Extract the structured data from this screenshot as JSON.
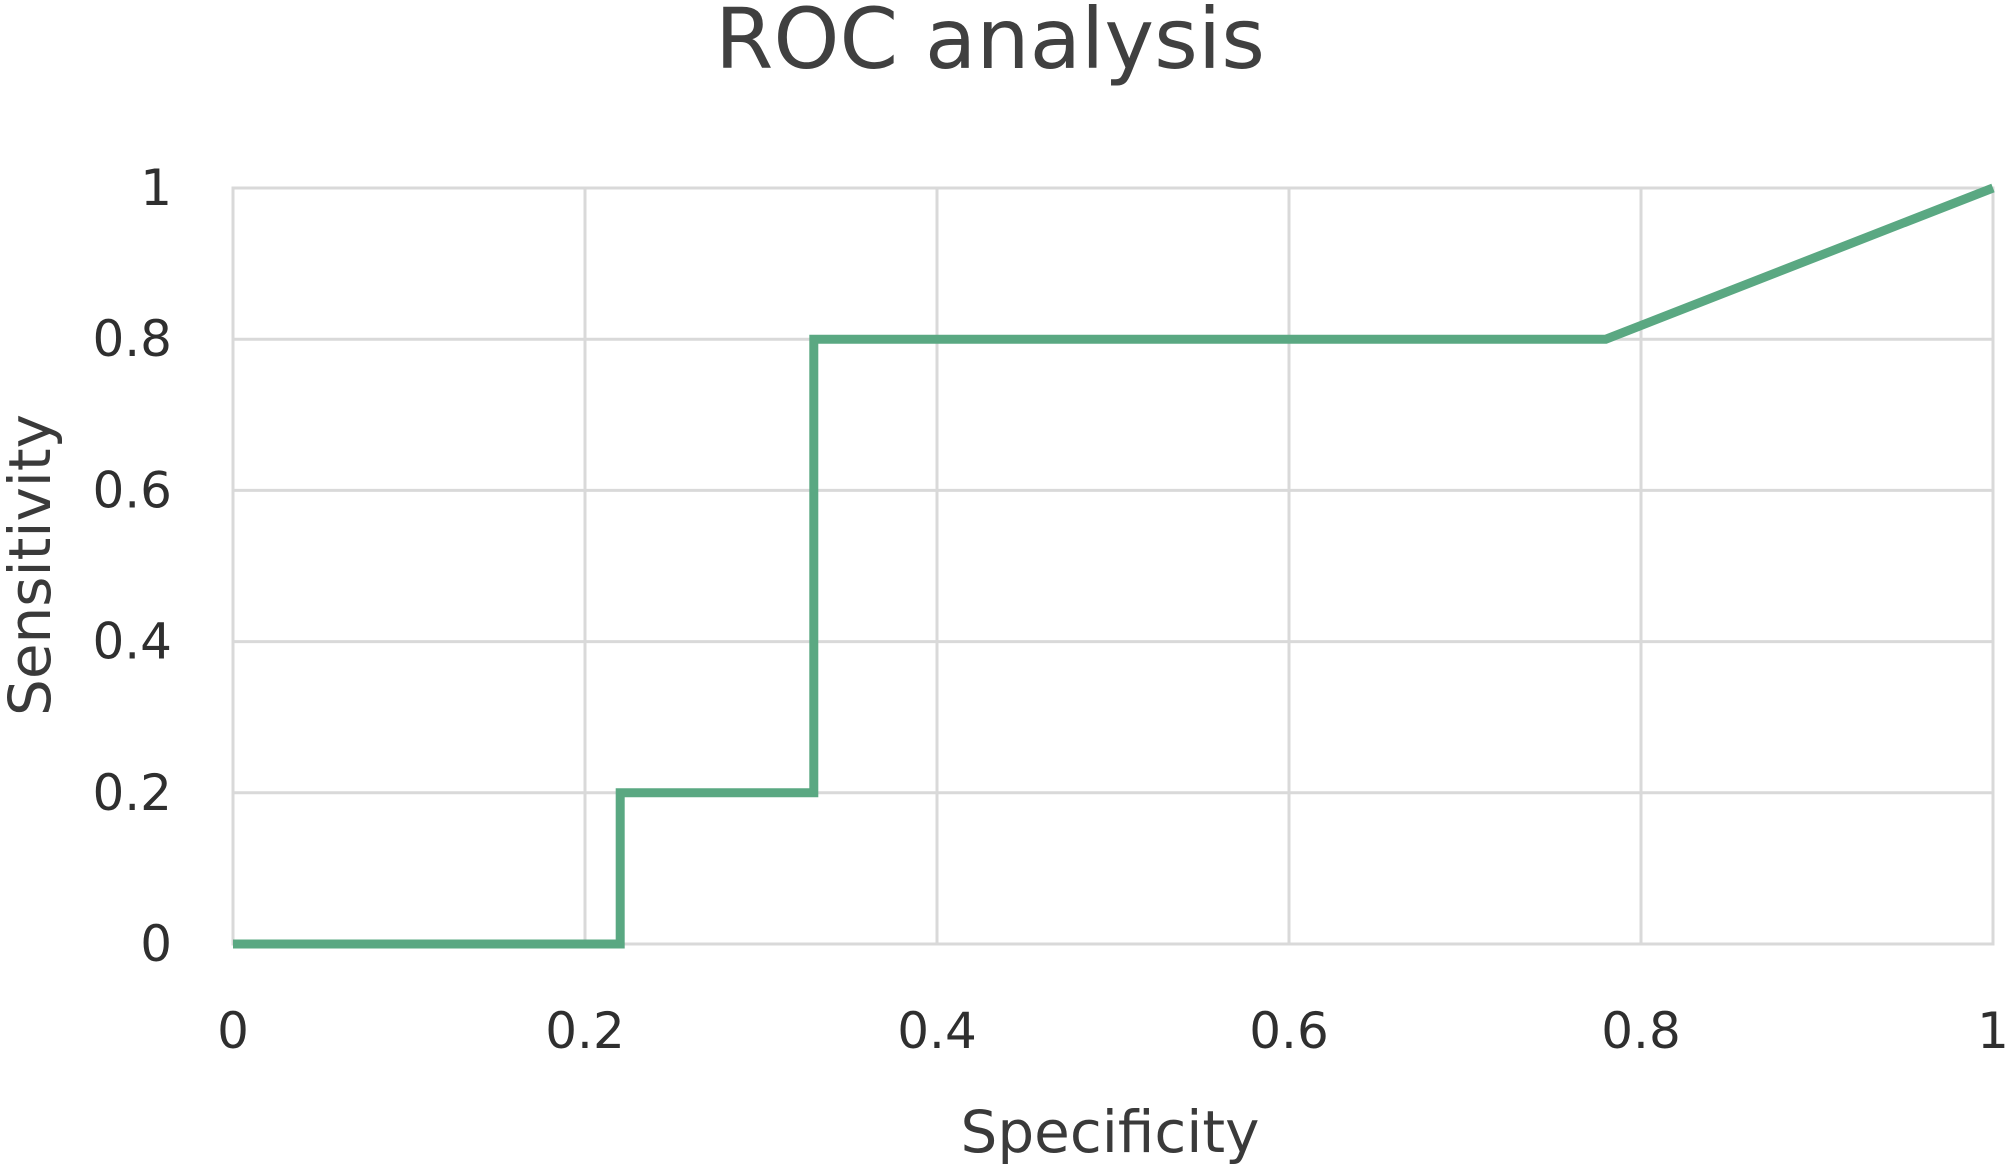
{
  "chart_data": {
    "type": "line",
    "title": "ROC analysis",
    "xlabel": "Specificity",
    "ylabel": "Sensitivity",
    "xlim": [
      0,
      1
    ],
    "ylim": [
      0,
      1
    ],
    "x_ticks": [
      "0",
      "0.2",
      "0.4",
      "0.6",
      "0.8",
      "1"
    ],
    "y_ticks": [
      "0",
      "0.2",
      "0.4",
      "0.6",
      "0.8",
      "1"
    ],
    "grid": true,
    "legend": "none",
    "series": [
      {
        "color": "#5aa882",
        "x": [
          0,
          0.22,
          0.22,
          0.33,
          0.33,
          0.78,
          1
        ],
        "y": [
          0,
          0,
          0.2,
          0.2,
          0.8,
          0.8,
          1
        ]
      }
    ]
  }
}
